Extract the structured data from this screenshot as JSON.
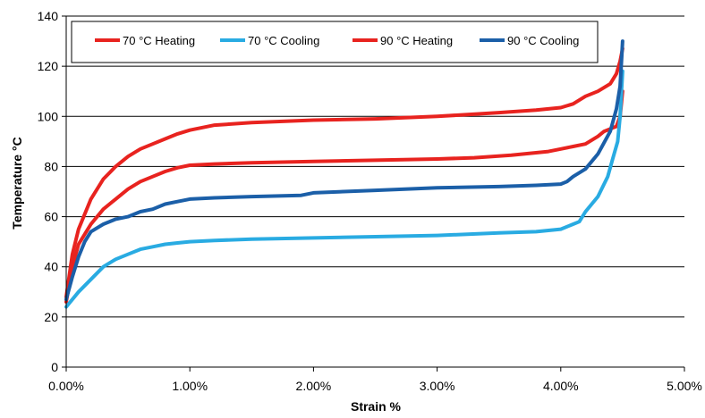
{
  "chart_data": {
    "type": "line",
    "title": "",
    "xlabel": "Strain %",
    "ylabel": "Temperature °C",
    "xlim": [
      0,
      5
    ],
    "ylim": [
      0,
      140
    ],
    "x_ticks": [
      0,
      1,
      2,
      3,
      4,
      5
    ],
    "x_tick_labels": [
      "0.00%",
      "1.00%",
      "2.00%",
      "3.00%",
      "4.00%",
      "5.00%"
    ],
    "y_ticks": [
      0,
      20,
      40,
      60,
      80,
      100,
      120,
      140
    ],
    "y_tick_labels": [
      "0",
      "20",
      "40",
      "60",
      "80",
      "100",
      "120",
      "140"
    ],
    "grid": "horizontal",
    "legend_position": "top",
    "series": [
      {
        "name": "70 °C Heating",
        "color": "#e8231f",
        "x": [
          0.0,
          0.05,
          0.1,
          0.2,
          0.3,
          0.4,
          0.5,
          0.6,
          0.7,
          0.8,
          0.9,
          1.0,
          1.2,
          1.5,
          2.0,
          2.5,
          3.0,
          3.3,
          3.6,
          3.9,
          4.0,
          4.1,
          4.2,
          4.3,
          4.35,
          4.4,
          4.45,
          4.48,
          4.5
        ],
        "values": [
          26,
          40,
          49,
          57,
          63,
          67,
          71,
          74,
          76,
          78,
          79.5,
          80.5,
          81,
          81.5,
          82,
          82.5,
          83,
          83.5,
          84.5,
          86,
          87,
          88,
          89,
          92,
          94,
          95,
          96,
          100,
          110
        ]
      },
      {
        "name": "70 °C Cooling",
        "color": "#29abe2",
        "x": [
          0.0,
          0.1,
          0.2,
          0.3,
          0.4,
          0.5,
          0.6,
          0.7,
          0.8,
          0.9,
          1.0,
          1.2,
          1.5,
          2.0,
          2.5,
          3.0,
          3.5,
          3.8,
          4.0,
          4.1,
          4.15,
          4.2,
          4.3,
          4.38,
          4.42,
          4.46,
          4.48,
          4.5
        ],
        "values": [
          24,
          30,
          35,
          40,
          43,
          45,
          47,
          48,
          49,
          49.5,
          50,
          50.5,
          51,
          51.5,
          52,
          52.5,
          53.5,
          54,
          55,
          57,
          58,
          62,
          68,
          76,
          83,
          90,
          100,
          118
        ]
      },
      {
        "name": "90 °C Heating",
        "color": "#e8231f",
        "x": [
          0.0,
          0.05,
          0.1,
          0.2,
          0.3,
          0.4,
          0.5,
          0.6,
          0.7,
          0.8,
          0.9,
          1.0,
          1.2,
          1.5,
          2.0,
          2.5,
          3.0,
          3.5,
          3.8,
          4.0,
          4.1,
          4.2,
          4.3,
          4.4,
          4.45,
          4.48,
          4.5
        ],
        "values": [
          28,
          45,
          55,
          67,
          75,
          80,
          84,
          87,
          89,
          91,
          93,
          94.5,
          96.5,
          97.5,
          98.5,
          99,
          100,
          101.5,
          102.5,
          103.5,
          105,
          108,
          110,
          113,
          117,
          122,
          127
        ]
      },
      {
        "name": "90 °C Cooling",
        "color": "#1b5fa8",
        "x": [
          0.0,
          0.05,
          0.1,
          0.15,
          0.2,
          0.3,
          0.4,
          0.5,
          0.6,
          0.7,
          0.8,
          0.9,
          1.0,
          1.2,
          1.5,
          1.9,
          2.0,
          2.5,
          3.0,
          3.5,
          3.8,
          4.0,
          4.05,
          4.1,
          4.2,
          4.3,
          4.4,
          4.45,
          4.48,
          4.5
        ],
        "values": [
          27,
          36,
          44,
          50,
          54,
          57,
          59,
          60,
          62,
          63,
          65,
          66,
          67,
          67.5,
          68,
          68.5,
          69.5,
          70.5,
          71.5,
          72,
          72.5,
          73,
          74,
          76,
          79,
          85,
          94,
          103,
          112,
          130
        ]
      }
    ]
  }
}
